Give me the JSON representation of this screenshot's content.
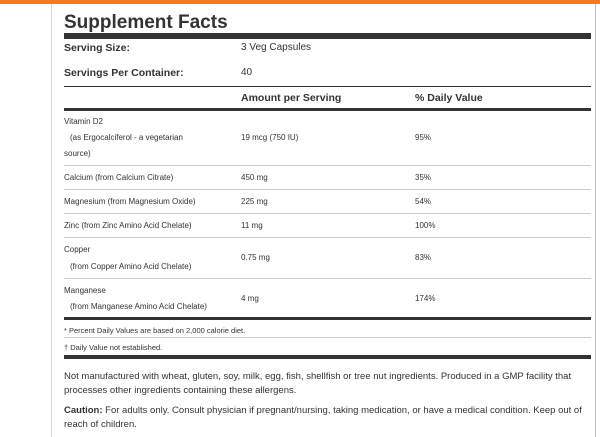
{
  "title": "Supplement Facts",
  "serving": {
    "size_label": "Serving Size:",
    "size_value": "3 Veg Capsules",
    "per_container_label": "Servings Per Container:",
    "per_container_value": "40"
  },
  "headers": {
    "amount": "Amount per Serving",
    "daily_value": "% Daily Value"
  },
  "nutrients": [
    {
      "name": "Vitamin D2",
      "detail_1": "(as Ergocalciferol - a vegetarian",
      "detail_2": "source)",
      "amount": "19 mcg (750 IU)",
      "dv": "95%"
    },
    {
      "name": "Calcium (from Calcium Citrate)",
      "amount": "450 mg",
      "dv": "35%"
    },
    {
      "name": "Magnesium (from Magnesium Oxide)",
      "amount": "225 mg",
      "dv": "54%"
    },
    {
      "name": "Zinc (from Zinc Amino Acid Chelate)",
      "amount": "11 mg",
      "dv": "100%"
    },
    {
      "name": "Copper",
      "detail_1": "(from Copper Amino Acid Chelate)",
      "amount": "0.75 mg",
      "dv": "83%"
    },
    {
      "name": "Manganese",
      "detail_1": "(from Manganese Amino Acid Chelate)",
      "amount": "4 mg",
      "dv": "174%"
    }
  ],
  "footnotes": {
    "percent_note": "* Percent Daily Values are based on 2,000 calorie diet.",
    "dagger_note": "† Daily Value not established."
  },
  "allergen_note": "Not manufactured with wheat, gluten, soy, milk, egg, fish, shellfish or tree nut ingredients. Produced in a GMP facility that processes other ingredients containing these allergens.",
  "caution": {
    "label": "Caution:",
    "text": " For adults only. Consult physician if pregnant/nursing, taking medication, or have a medical condition. Keep out of reach of children."
  }
}
